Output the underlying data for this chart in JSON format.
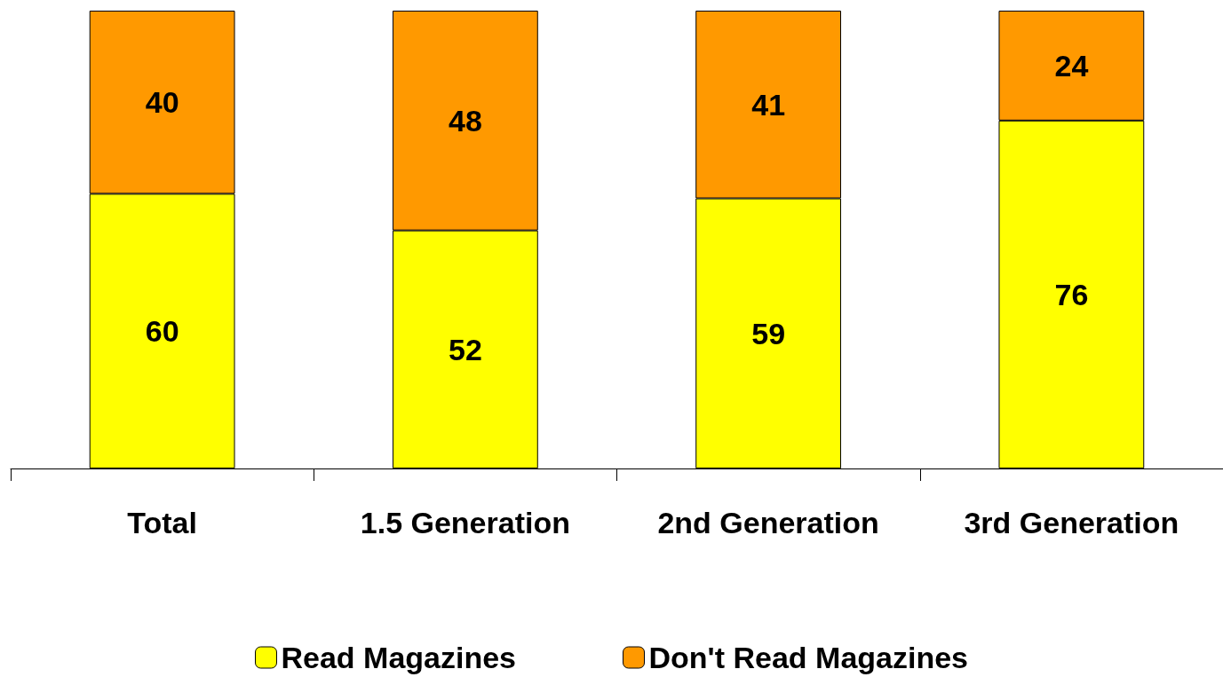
{
  "chart_data": {
    "type": "bar",
    "stacked": true,
    "data_labels": true,
    "legend": "bottom",
    "grid": false,
    "tick_labels": "x",
    "categories": [
      "Total",
      "1.5 Generation",
      "2nd Generation",
      "3rd Generation"
    ],
    "ylim": [
      0,
      100
    ],
    "series": [
      {
        "name": "Read Magazines",
        "color": "#ffff00",
        "values": [
          60,
          52,
          59,
          76
        ]
      },
      {
        "name": "Don't Read Magazines",
        "color": "#ff9900",
        "values": [
          40,
          48,
          41,
          24
        ]
      }
    ]
  }
}
